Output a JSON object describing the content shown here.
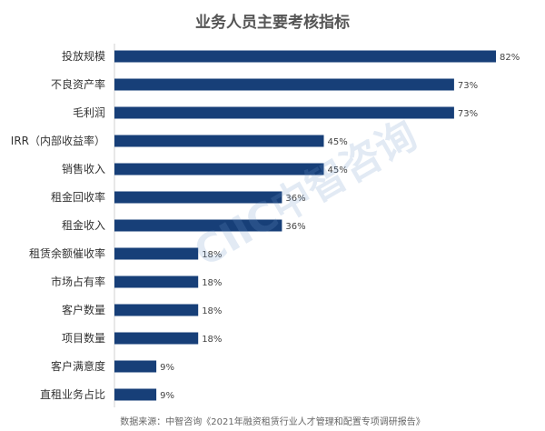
{
  "chart_data": {
    "type": "bar",
    "orientation": "horizontal",
    "title": "业务人员主要考核指标",
    "categories": [
      "投放规模",
      "不良资产率",
      "毛利润",
      "IRR（内部收益率）",
      "销售收入",
      "租金回收率",
      "租金收入",
      "租赁余额催收率",
      "市场占有率",
      "客户数量",
      "项目数量",
      "客户满意度",
      "直租业务占比"
    ],
    "values": [
      82,
      73,
      73,
      45,
      45,
      36,
      36,
      18,
      18,
      18,
      18,
      9,
      9
    ],
    "data_labels": [
      "82%",
      "73%",
      "73%",
      "45%",
      "45%",
      "36%",
      "36%",
      "18%",
      "18%",
      "18%",
      "18%",
      "9%",
      "9%"
    ],
    "unit": "%",
    "xlim": [
      0,
      82
    ],
    "bar_color": "#173f78",
    "grid": false,
    "legend": "none"
  },
  "source": "数据来源：中智咨询《2021年融资租赁行业人才管理和配置专项调研报告》",
  "watermark": "CIIC中智咨询"
}
